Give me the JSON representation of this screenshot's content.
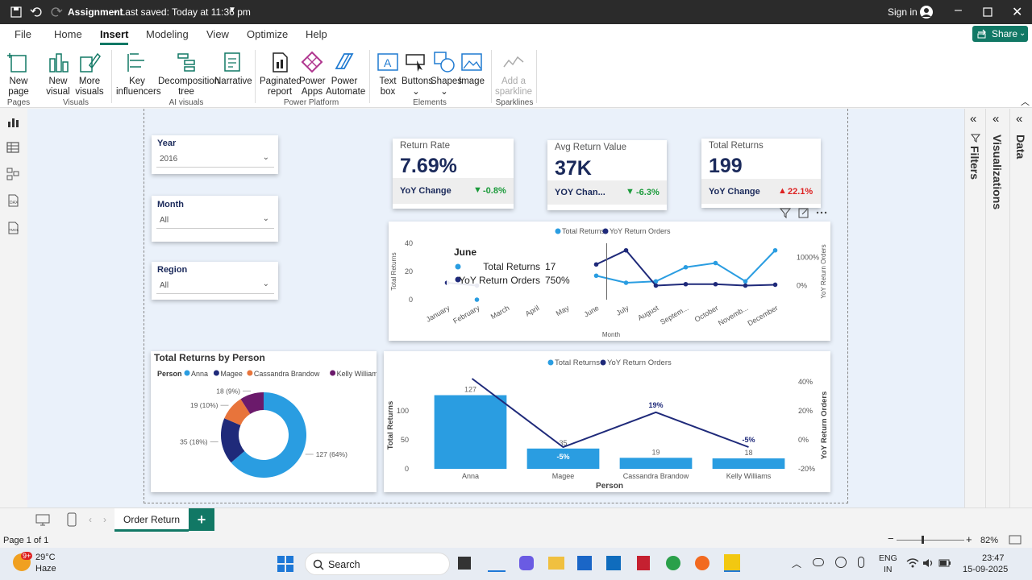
{
  "titlebar": {
    "doc_title": "Assignment",
    "saved": "• Last saved: Today at 11:36 pm",
    "signin": "Sign in"
  },
  "menu": [
    "File",
    "Home",
    "Insert",
    "Modeling",
    "View",
    "Optimize",
    "Help"
  ],
  "share": "Share",
  "ribbon": {
    "new_page": "New page",
    "new_visual": "New visual",
    "more_visuals": "More visuals",
    "key_influencers": "Key influencers",
    "decomposition_tree": "Decomposition tree",
    "narrative": "Narrative",
    "paginated_report": "Paginated report",
    "power_apps": "Power Apps",
    "power_automate": "Power Automate",
    "text_box": "Text box",
    "buttons": "Buttons",
    "shapes": "Shapes",
    "image": "Image",
    "add_sparkline": "Add a sparkline",
    "groups": [
      "Pages",
      "Visuals",
      "AI visuals",
      "Power Platform",
      "Elements",
      "Sparklines"
    ]
  },
  "slicers": [
    {
      "label": "Year",
      "value": "2016"
    },
    {
      "label": "Month",
      "value": "All"
    },
    {
      "label": "Region",
      "value": "All"
    }
  ],
  "kpis": [
    {
      "title": "Return Rate",
      "value": "7.69%",
      "change_label": "YoY Change",
      "change": "-0.8%",
      "direction": "down"
    },
    {
      "title": "Avg Return Value",
      "value": "37K",
      "change_label": "YOY Chan...",
      "change": "-6.3%",
      "direction": "down"
    },
    {
      "title": "Total Returns",
      "value": "199",
      "change_label": "YoY Change",
      "change": "22.1%",
      "direction": "up"
    }
  ],
  "colors": {
    "total_returns": "#2a9de1",
    "yoy": "#1f2a7a",
    "accent": "#117865",
    "magee": "#1f2a7a",
    "cassandra": "#e8743b",
    "kelly": "#6b1a6b"
  },
  "chart_data": [
    {
      "type": "line",
      "legend": [
        "Total Returns",
        "YoY Return Orders"
      ],
      "xlabel": "Month",
      "ylabel": "Total Returns",
      "y2label": "YoY Return Orders",
      "categories": [
        "January",
        "February",
        "March",
        "April",
        "May",
        "June",
        "July",
        "August",
        "Septem...",
        "October",
        "Novemb...",
        "December"
      ],
      "y_ticks": [
        "0",
        "20",
        "40"
      ],
      "y2_ticks": [
        "0%",
        "1000%"
      ],
      "ylim": [
        0,
        40
      ],
      "y2lim": [
        -500,
        1500
      ],
      "series": [
        {
          "name": "Total Returns",
          "values": [
            null,
            0,
            null,
            null,
            null,
            17,
            12,
            13,
            23,
            26,
            13,
            35
          ]
        },
        {
          "name": "YoY Return Orders",
          "values": [
            100,
            0,
            null,
            null,
            null,
            750,
            1250,
            0,
            50,
            50,
            0,
            30
          ]
        }
      ],
      "tooltip": {
        "title": "June",
        "rows": [
          {
            "label": "Total Returns",
            "value": "17"
          },
          {
            "label": "YoY Return Orders",
            "value": "750%"
          }
        ]
      }
    },
    {
      "type": "pie",
      "title": "Total Returns by Person",
      "legend_title": "Person",
      "labels": [
        "Anna",
        "Magee",
        "Cassandra Brandow",
        "Kelly Williams"
      ],
      "values": [
        127,
        35,
        19,
        18
      ],
      "data_labels": [
        "127 (64%)",
        "35 (18%)",
        "19 (10%)",
        "18 (9%)"
      ]
    },
    {
      "type": "bar",
      "legend": [
        "Total Returns",
        "YoY Return Orders"
      ],
      "xlabel": "Person",
      "ylabel": "Total Returns",
      "y2label": "YoY Return Orders",
      "categories": [
        "Anna",
        "Magee",
        "Cassandra Brandow",
        "Kelly Williams"
      ],
      "y_ticks": [
        "0",
        "50",
        "100"
      ],
      "y2_ticks": [
        "-20%",
        "0%",
        "20%",
        "40%"
      ],
      "ylim": [
        0,
        150
      ],
      "y2lim": [
        -20,
        40
      ],
      "series": [
        {
          "name": "Total Returns",
          "values": [
            127,
            35,
            19,
            18
          ],
          "labels": [
            "127",
            "35",
            "19",
            "18"
          ]
        },
        {
          "name": "YoY Return Orders",
          "values": [
            null,
            -5,
            19,
            -5
          ],
          "labels": [
            "",
            "-5%",
            "19%",
            "-5%"
          ]
        }
      ]
    }
  ],
  "rightpanes": {
    "filters": "Filters",
    "visualizations": "Visualizations",
    "data": "Data"
  },
  "tab": {
    "name": "Order Return",
    "add": "+"
  },
  "status": {
    "page": "Page 1 of 1",
    "zoom": "82%"
  },
  "taskbar": {
    "temp": "29°C",
    "weather": "Haze",
    "search": "Search",
    "lang1": "ENG",
    "lang2": "IN",
    "time": "23:47",
    "date": "15-09-2025",
    "badge": "9+"
  }
}
